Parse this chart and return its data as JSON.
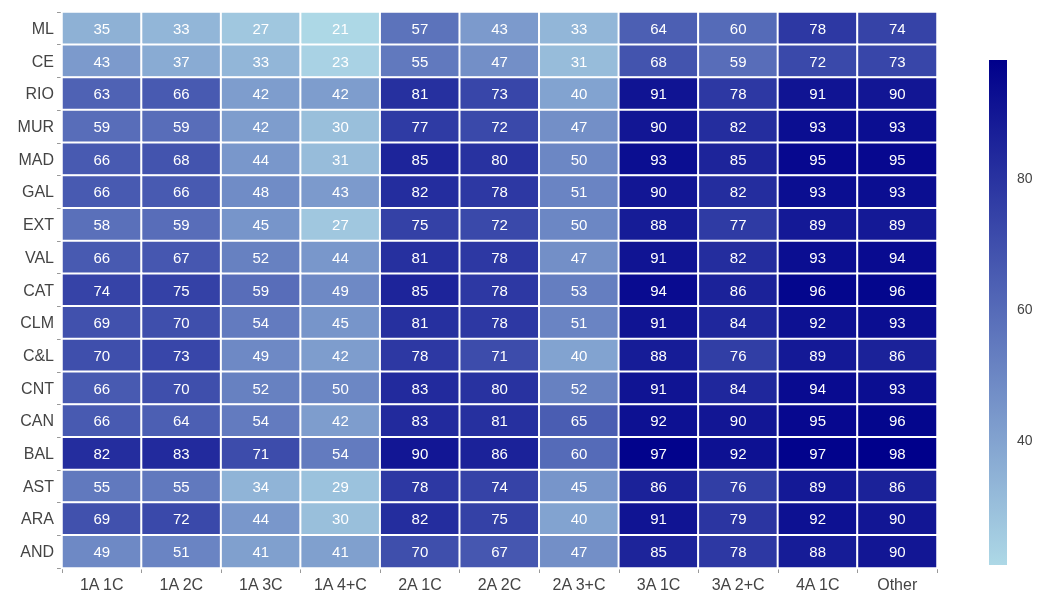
{
  "chart_data": {
    "type": "heatmap",
    "categories": [
      "1A 1C",
      "1A 2C",
      "1A 3C",
      "1A 4+C",
      "2A 1C",
      "2A 2C",
      "2A 3+C",
      "3A 1C",
      "3A 2+C",
      "4A 1C",
      "Other"
    ],
    "y_categories": [
      "ML",
      "CE",
      "RIO",
      "MUR",
      "MAD",
      "GAL",
      "EXT",
      "VAL",
      "CAT",
      "CLM",
      "C&L",
      "CNT",
      "CAN",
      "BAL",
      "AST",
      "ARA",
      "AND"
    ],
    "cells": [
      [
        35,
        33,
        27,
        21,
        57,
        43,
        33,
        64,
        60,
        78,
        74
      ],
      [
        43,
        37,
        33,
        23,
        55,
        47,
        31,
        68,
        59,
        72,
        73
      ],
      [
        63,
        66,
        42,
        42,
        81,
        73,
        40,
        91,
        78,
        91,
        90
      ],
      [
        59,
        59,
        42,
        30,
        77,
        72,
        47,
        90,
        82,
        93,
        93
      ],
      [
        66,
        68,
        44,
        31,
        85,
        80,
        50,
        93,
        85,
        95,
        95
      ],
      [
        66,
        66,
        48,
        43,
        82,
        78,
        51,
        90,
        82,
        93,
        93
      ],
      [
        58,
        59,
        45,
        27,
        75,
        72,
        50,
        88,
        77,
        89,
        89
      ],
      [
        66,
        67,
        52,
        44,
        81,
        78,
        47,
        91,
        82,
        93,
        94
      ],
      [
        74,
        75,
        59,
        49,
        85,
        78,
        53,
        94,
        86,
        96,
        96
      ],
      [
        69,
        70,
        54,
        45,
        81,
        78,
        51,
        91,
        84,
        92,
        93
      ],
      [
        70,
        73,
        49,
        42,
        78,
        71,
        40,
        88,
        76,
        89,
        86
      ],
      [
        66,
        70,
        52,
        50,
        83,
        80,
        52,
        91,
        84,
        94,
        93
      ],
      [
        66,
        64,
        54,
        42,
        83,
        81,
        65,
        92,
        90,
        95,
        96
      ],
      [
        82,
        83,
        71,
        54,
        90,
        86,
        60,
        97,
        92,
        97,
        98
      ],
      [
        55,
        55,
        34,
        29,
        78,
        74,
        45,
        86,
        76,
        89,
        86
      ],
      [
        69,
        72,
        44,
        30,
        82,
        75,
        40,
        91,
        79,
        92,
        90
      ],
      [
        49,
        51,
        41,
        41,
        70,
        67,
        47,
        85,
        78,
        88,
        90
      ]
    ],
    "colors": [
      "#add8e6",
      "#00008b"
    ],
    "clim": [
      21,
      98
    ],
    "cticks": [
      40,
      60,
      80
    ],
    "data_labels": true
  }
}
